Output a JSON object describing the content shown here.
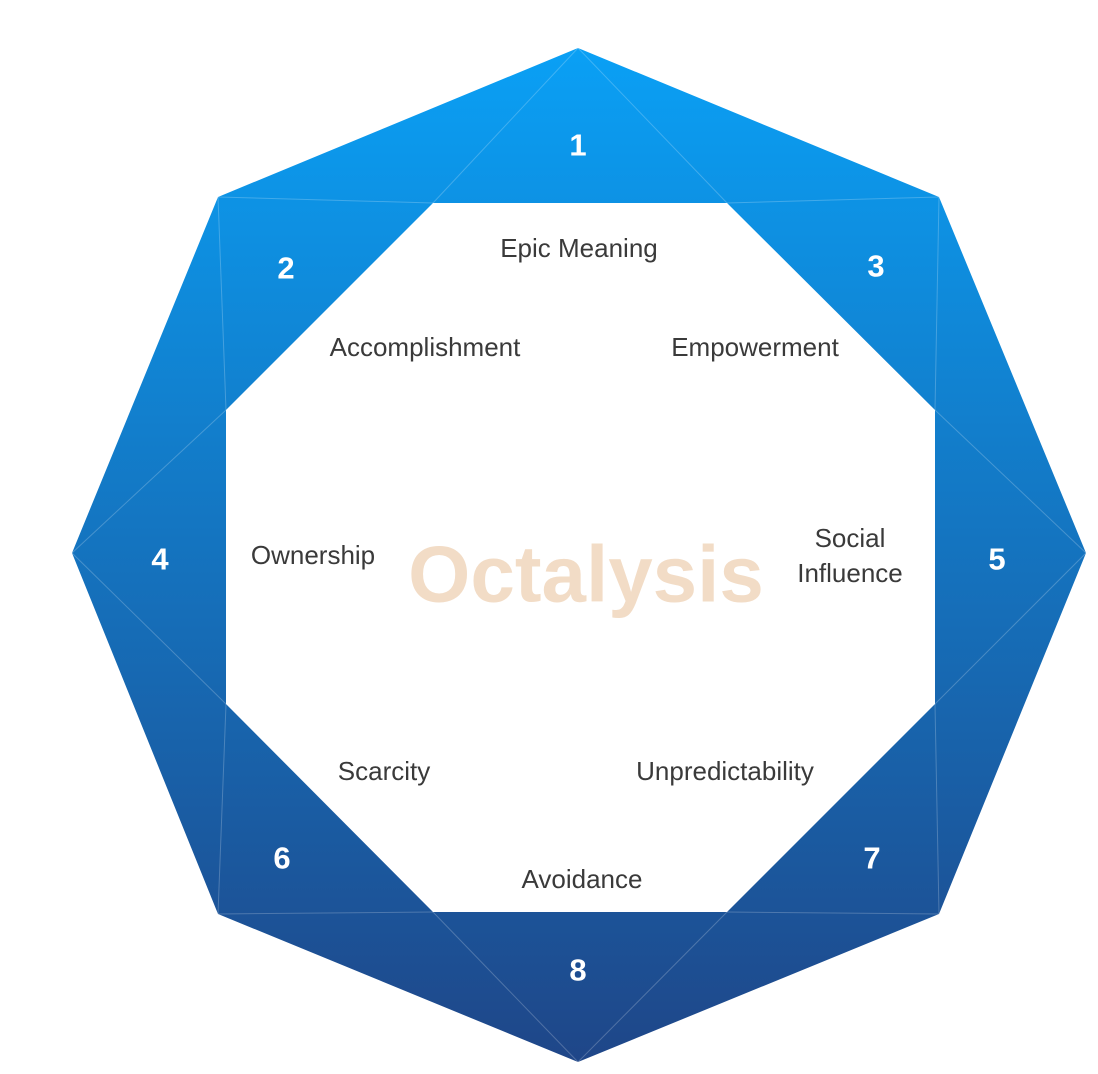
{
  "diagram": {
    "title": "Octalysis",
    "colors": {
      "band_top": "#0aa0f5",
      "band_bottom": "#1f4688",
      "title": "#f2dcc6",
      "label": "#3a3a3a",
      "number": "#ffffff"
    },
    "drives": [
      {
        "number": "1",
        "label": "Epic Meaning"
      },
      {
        "number": "2",
        "label": "Accomplishment"
      },
      {
        "number": "3",
        "label": "Empowerment"
      },
      {
        "number": "4",
        "label": "Ownership"
      },
      {
        "number": "5",
        "label_line1": "Social",
        "label_line2": "Influence"
      },
      {
        "number": "6",
        "label": "Scarcity"
      },
      {
        "number": "7",
        "label": "Unpredictability"
      },
      {
        "number": "8",
        "label": "Avoidance"
      }
    ]
  }
}
